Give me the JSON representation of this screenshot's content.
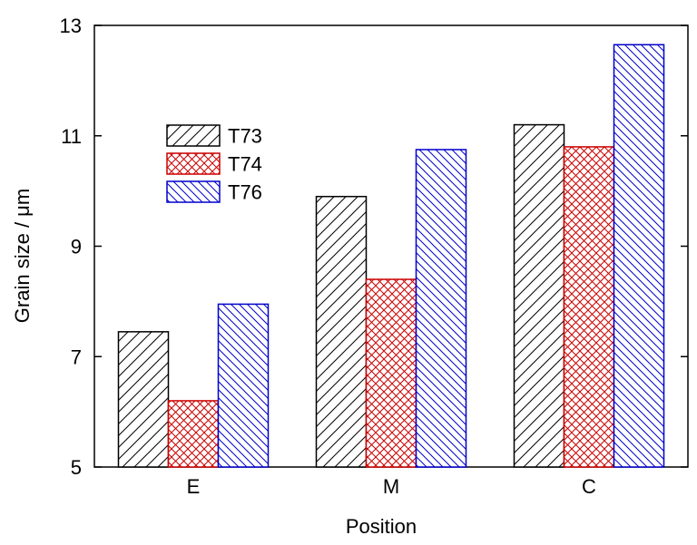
{
  "chart_data": {
    "type": "bar",
    "title": "",
    "xlabel": "Position",
    "ylabel": "Grain size / μm",
    "categories": [
      "E",
      "M",
      "C"
    ],
    "ylim": [
      5,
      13
    ],
    "yticks": [
      5,
      7,
      9,
      11,
      13
    ],
    "ytick_labels": [
      "5",
      "7",
      "9",
      "11",
      "13"
    ],
    "grid": false,
    "legend_position": "upper-left",
    "series": [
      {
        "name": "T73",
        "values": [
          7.45,
          9.9,
          11.2
        ],
        "color": "#000000",
        "pattern": "diagonal-forward"
      },
      {
        "name": "T74",
        "values": [
          6.2,
          8.4,
          10.8
        ],
        "color": "#cc0000",
        "pattern": "crosshatch"
      },
      {
        "name": "T76",
        "values": [
          7.95,
          10.75,
          12.65
        ],
        "color": "#0000cc",
        "pattern": "diagonal-back"
      }
    ]
  }
}
